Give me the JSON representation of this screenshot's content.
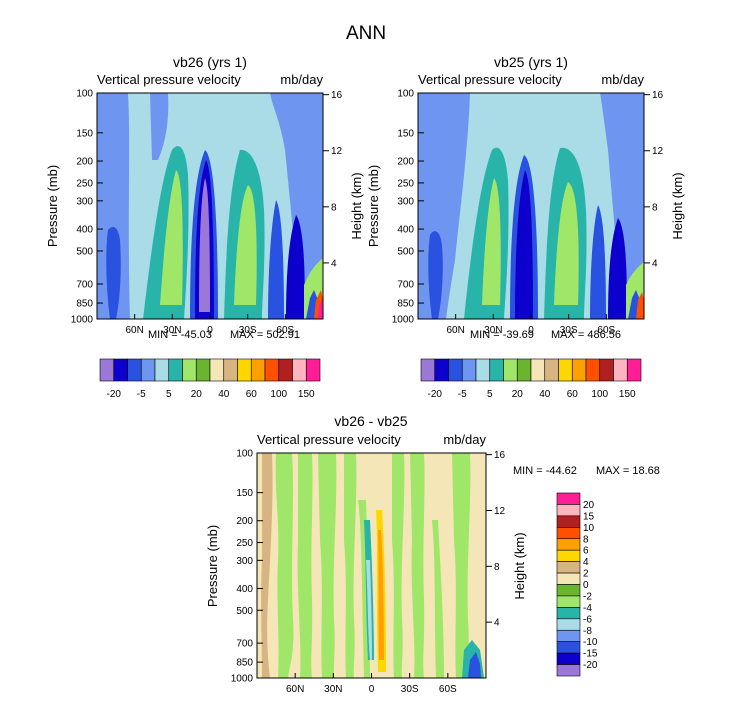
{
  "figure": {
    "title": "ANN"
  },
  "colors": {
    "abs_scale": [
      "#9b78d8",
      "#0d00cc",
      "#2a52e0",
      "#6e96f0",
      "#aadce8",
      "#28b4a8",
      "#a0e668",
      "#6ab42e",
      "#f5e6b8",
      "#d8b482",
      "#ffd700",
      "#ffa000",
      "#ff5000",
      "#b02020",
      "#ffb4c0",
      "#ff1e96"
    ],
    "diff_scale": [
      "#9b78d8",
      "#0d00cc",
      "#2a52e0",
      "#6e96f0",
      "#aadce8",
      "#28b4a8",
      "#a0e668",
      "#6ab42e",
      "#f5e6b8",
      "#d8b482",
      "#ffd700",
      "#ffa000",
      "#ff5000",
      "#b02020",
      "#ffb4c0",
      "#ff1e96"
    ]
  },
  "chart_data": [
    {
      "id": "vb26",
      "type": "heatmap",
      "title": "vb26 (yrs 1)",
      "left_label": "Vertical pressure velocity",
      "right_label": "mb/day",
      "ylabel": "Pressure (mb)",
      "y2label": "Height (km)",
      "y_ticks": [
        "100",
        "150",
        "200",
        "250",
        "300",
        "400",
        "500",
        "700",
        "850",
        "1000"
      ],
      "y2_ticks": [
        "16",
        "12",
        "8",
        "4"
      ],
      "x_ticks": [
        "60N",
        "30N",
        "0",
        "30S",
        "60S"
      ],
      "stats": {
        "min_label": "MIN = -45.03",
        "max_label": "MAX = 502.91"
      },
      "levels": [
        "-20",
        "-5",
        "5",
        "20",
        "40",
        "60",
        "100",
        "150"
      ],
      "features": "Broad descent (light cyan 0-5) in subtropics, strong ascent core (purple/blue, < -20) at the equator from 1000 to 150 mb, green subsidence lobes near 20N and 20S (20-40), deep blue ascent bands near 40N and 50S-60S, localized extremes up to 150 near 70S-80S surface."
    },
    {
      "id": "vb25",
      "type": "heatmap",
      "title": "vb25 (yrs 1)",
      "left_label": "Vertical pressure velocity",
      "right_label": "mb/day",
      "ylabel": "Pressure (mb)",
      "y2label": "Height (km)",
      "y_ticks": [
        "100",
        "150",
        "200",
        "250",
        "300",
        "400",
        "500",
        "700",
        "850",
        "1000"
      ],
      "y2_ticks": [
        "16",
        "12",
        "8",
        "4"
      ],
      "x_ticks": [
        "60N",
        "30N",
        "0",
        "30S",
        "60S"
      ],
      "stats": {
        "min_label": "MIN = -39.69",
        "max_label": "MAX = 486.56"
      },
      "levels": [
        "-20",
        "-5",
        "5",
        "20",
        "40",
        "60",
        "100",
        "150"
      ],
      "features": "Similar structure to vb26 with slightly weaker equatorial ascent and subtropical subsidence."
    },
    {
      "id": "diff",
      "type": "heatmap",
      "title": "vb26 - vb25",
      "left_label": "Vertical pressure velocity",
      "right_label": "mb/day",
      "ylabel": "Pressure (mb)",
      "y2label": "Height (km)",
      "y_ticks": [
        "100",
        "150",
        "200",
        "250",
        "300",
        "400",
        "500",
        "700",
        "850",
        "1000"
      ],
      "y2_ticks": [
        "16",
        "12",
        "8",
        "4"
      ],
      "x_ticks": [
        "60N",
        "30N",
        "0",
        "30S",
        "60S"
      ],
      "stats": {
        "min_label": "MIN = -44.62",
        "max_label": "MAX =  18.68"
      },
      "levels": [
        "20",
        "15",
        "10",
        "8",
        "6",
        "4",
        "2",
        "0",
        "-2",
        "-4",
        "-6",
        "-8",
        "-10",
        "-15",
        "-20"
      ],
      "features": "Mostly small differences (-2 to 2); alternating green/cream vertical bands; narrow positive anomaly (orange/yellow 4-8) and negative anomaly (cyan) near the equator; small extremes near 70S surface."
    }
  ]
}
